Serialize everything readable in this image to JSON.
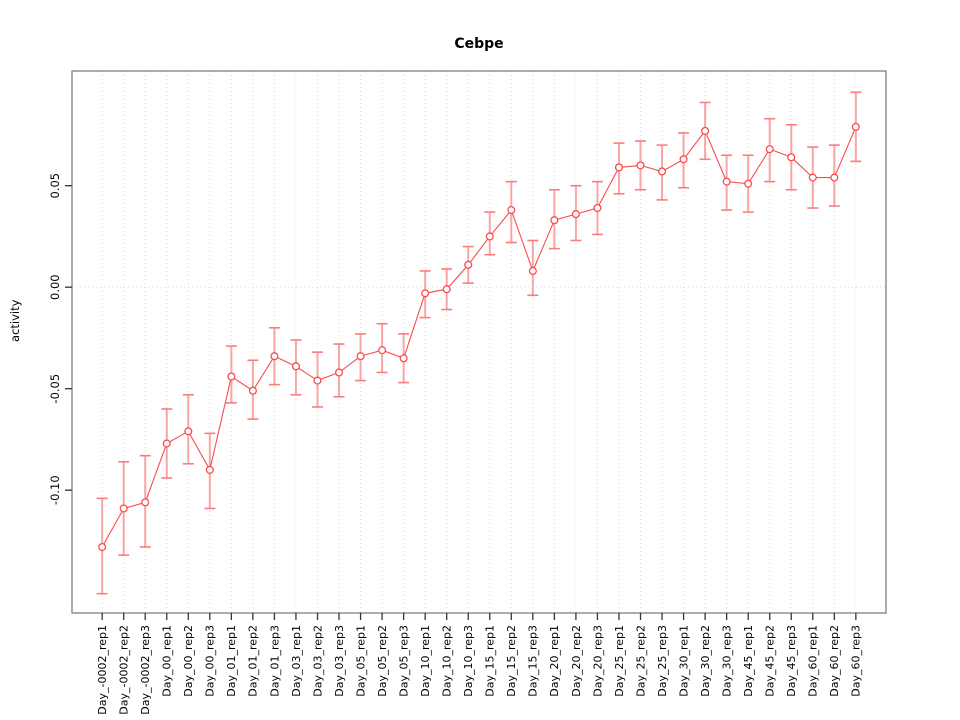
{
  "title": "Cebpe",
  "chart_data": {
    "type": "line",
    "title": "Cebpe",
    "xlabel": "",
    "ylabel": "activity",
    "legend_position": "none",
    "grid": "dotted vertical gridline at each category; dotted horizontal line at y=0 only",
    "point_style": "open-circle with error bars",
    "ylim": [
      -0.1605,
      0.1065
    ],
    "yticks": [
      0.05,
      0.0,
      -0.05,
      -0.1
    ],
    "ytick_labels": [
      "0.05",
      "0.00",
      "-0.05",
      "-0.10"
    ],
    "categories": [
      "Day_-0002_rep1",
      "Day_-0002_rep2",
      "Day_-0002_rep3",
      "Day_00_rep1",
      "Day_00_rep2",
      "Day_00_rep3",
      "Day_01_rep1",
      "Day_01_rep2",
      "Day_01_rep3",
      "Day_03_rep1",
      "Day_03_rep2",
      "Day_03_rep3",
      "Day_05_rep1",
      "Day_05_rep2",
      "Day_05_rep3",
      "Day_10_rep1",
      "Day_10_rep2",
      "Day_10_rep3",
      "Day_15_rep1",
      "Day_15_rep2",
      "Day_15_rep3",
      "Day_20_rep1",
      "Day_20_rep2",
      "Day_20_rep3",
      "Day_25_rep1",
      "Day_25_rep2",
      "Day_25_rep3",
      "Day_30_rep1",
      "Day_30_rep2",
      "Day_30_rep3",
      "Day_45_rep1",
      "Day_45_rep2",
      "Day_45_rep3",
      "Day_60_rep1",
      "Day_60_rep2",
      "Day_60_rep3"
    ],
    "series": [
      {
        "name": "activity",
        "values": [
          -0.128,
          -0.109,
          -0.106,
          -0.077,
          -0.071,
          -0.09,
          -0.044,
          -0.051,
          -0.034,
          -0.039,
          -0.046,
          -0.042,
          -0.034,
          -0.031,
          -0.035,
          -0.003,
          -0.001,
          0.011,
          0.025,
          0.038,
          0.008,
          0.033,
          0.036,
          0.039,
          0.059,
          0.06,
          0.057,
          0.063,
          0.077,
          0.052,
          0.051,
          0.068,
          0.064,
          0.054,
          0.054,
          0.079
        ],
        "err_lo": [
          -0.151,
          -0.132,
          -0.128,
          -0.094,
          -0.087,
          -0.109,
          -0.057,
          -0.065,
          -0.048,
          -0.053,
          -0.059,
          -0.054,
          -0.046,
          -0.042,
          -0.047,
          -0.015,
          -0.011,
          0.002,
          0.016,
          0.022,
          -0.004,
          0.019,
          0.023,
          0.026,
          0.046,
          0.048,
          0.043,
          0.049,
          0.063,
          0.038,
          0.037,
          0.052,
          0.048,
          0.039,
          0.04,
          0.062
        ],
        "err_hi": [
          -0.104,
          -0.086,
          -0.083,
          -0.06,
          -0.053,
          -0.072,
          -0.029,
          -0.036,
          -0.02,
          -0.026,
          -0.032,
          -0.028,
          -0.023,
          -0.018,
          -0.023,
          0.008,
          0.009,
          0.02,
          0.037,
          0.052,
          0.023,
          0.048,
          0.05,
          0.052,
          0.071,
          0.072,
          0.07,
          0.076,
          0.091,
          0.065,
          0.065,
          0.083,
          0.08,
          0.069,
          0.07,
          0.096
        ]
      }
    ],
    "colors": {
      "series_line": "#fb4b4b",
      "point_stroke": "#fb4b4b",
      "error_bar_stem": "#fba4a4",
      "error_bar_cap": "#fa7d7d",
      "gridline": "#d9d9d9",
      "zero_line": "#dcdcdc",
      "frame": "#7f7f7f",
      "tick": "#333333",
      "text": "#000000"
    }
  }
}
